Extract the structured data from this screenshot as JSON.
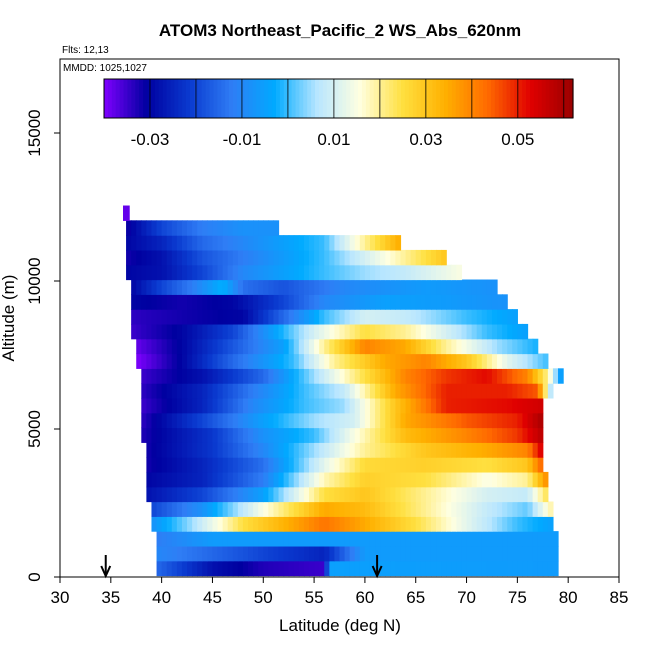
{
  "chart_data": {
    "type": "heatmap",
    "title": "ATOM3 Northeast_Pacific_2 WS_Abs_620nm",
    "flights_label": "Flts: 12,13",
    "dates_label": "MMDD: 1025,1027",
    "xlabel": "Latitude (deg N)",
    "ylabel": "Altitude (m)",
    "xlim": [
      30,
      85
    ],
    "ylim": [
      0,
      17500
    ],
    "x_ticks": [
      "30",
      "35",
      "40",
      "45",
      "50",
      "55",
      "60",
      "65",
      "70",
      "75",
      "80",
      "85"
    ],
    "y_ticks": [
      "0",
      "5000",
      "10000",
      "15000"
    ],
    "colorbar": {
      "range": [
        -0.04,
        0.062
      ],
      "tick_labels": [
        "-0.03",
        "-0.01",
        "0.01",
        "0.03",
        "0.05"
      ],
      "tick_values": [
        -0.03,
        -0.01,
        0.01,
        0.03,
        0.05
      ],
      "colors": [
        "#7f00ff",
        "#0000a0",
        "#0a3acf",
        "#2f7df5",
        "#00aaff",
        "#b8e6ff",
        "#ffffe0",
        "#ffe040",
        "#ffb000",
        "#ff6a00",
        "#e00000",
        "#9a0000"
      ]
    },
    "markers": [
      {
        "label": "arrow",
        "latitude": 34.5
      },
      {
        "label": "arrow",
        "latitude": 61.2
      }
    ],
    "layers": [
      {
        "alt": 300,
        "lat_start": 39.5,
        "lat_end": 79,
        "values": [
          [
            39.5,
            -0.015
          ],
          [
            45,
            -0.028
          ],
          [
            50,
            -0.033
          ],
          [
            56,
            -0.035
          ],
          [
            56.5,
            -0.005
          ],
          [
            79,
            -0.006
          ]
        ]
      },
      {
        "alt": 800,
        "lat_start": 39.5,
        "lat_end": 79,
        "values": [
          [
            39.5,
            -0.01
          ],
          [
            50,
            -0.02
          ],
          [
            56,
            -0.025
          ],
          [
            60,
            -0.006
          ],
          [
            79,
            -0.006
          ]
        ]
      },
      {
        "alt": 1300,
        "lat_start": 39.5,
        "lat_end": 79,
        "values": [
          [
            39.5,
            -0.012
          ],
          [
            45,
            -0.006
          ],
          [
            55,
            -0.006
          ],
          [
            65,
            -0.006
          ],
          [
            79,
            -0.006
          ]
        ]
      },
      {
        "alt": 1800,
        "lat_start": 39,
        "lat_end": 78.5,
        "values": [
          [
            39,
            -0.008
          ],
          [
            43,
            0.005
          ],
          [
            48,
            0.025
          ],
          [
            56,
            0.042
          ],
          [
            60,
            0.035
          ],
          [
            65,
            0.025
          ],
          [
            70,
            0.012
          ],
          [
            75,
            0.0
          ],
          [
            78.5,
            -0.005
          ]
        ]
      },
      {
        "alt": 2300,
        "lat_start": 39,
        "lat_end": 78.5,
        "values": [
          [
            39,
            -0.02
          ],
          [
            44,
            -0.008
          ],
          [
            50,
            0.015
          ],
          [
            56,
            0.035
          ],
          [
            60,
            0.032
          ],
          [
            66,
            0.02
          ],
          [
            72,
            0.008
          ],
          [
            76,
            0.002
          ],
          [
            78.5,
            0.02
          ]
        ]
      },
      {
        "alt": 2800,
        "lat_start": 38.5,
        "lat_end": 78,
        "values": [
          [
            38.5,
            -0.028
          ],
          [
            44,
            -0.02
          ],
          [
            50,
            -0.005
          ],
          [
            56,
            0.025
          ],
          [
            60,
            0.03
          ],
          [
            66,
            0.02
          ],
          [
            72,
            0.01
          ],
          [
            76,
            0.008
          ],
          [
            78,
            0.025
          ]
        ]
      },
      {
        "alt": 3300,
        "lat_start": 38.5,
        "lat_end": 78,
        "values": [
          [
            38.5,
            -0.03
          ],
          [
            44,
            -0.025
          ],
          [
            50,
            -0.012
          ],
          [
            56,
            0.018
          ],
          [
            60,
            0.028
          ],
          [
            66,
            0.025
          ],
          [
            72,
            0.015
          ],
          [
            76,
            0.02
          ],
          [
            78,
            0.04
          ]
        ]
      },
      {
        "alt": 3800,
        "lat_start": 38.5,
        "lat_end": 77.5,
        "values": [
          [
            38.5,
            -0.032
          ],
          [
            44,
            -0.025
          ],
          [
            50,
            -0.014
          ],
          [
            56,
            0.012
          ],
          [
            60,
            0.026
          ],
          [
            66,
            0.028
          ],
          [
            72,
            0.025
          ],
          [
            76,
            0.03
          ],
          [
            77.5,
            0.045
          ]
        ]
      },
      {
        "alt": 4300,
        "lat_start": 38.5,
        "lat_end": 77.5,
        "values": [
          [
            38.5,
            -0.032
          ],
          [
            45,
            -0.022
          ],
          [
            50,
            -0.01
          ],
          [
            56,
            0.008
          ],
          [
            60,
            0.02
          ],
          [
            66,
            0.03
          ],
          [
            72,
            0.035
          ],
          [
            76,
            0.04
          ],
          [
            77.5,
            0.055
          ]
        ]
      },
      {
        "alt": 4800,
        "lat_start": 38,
        "lat_end": 77.5,
        "values": [
          [
            38,
            -0.033
          ],
          [
            45,
            -0.022
          ],
          [
            50,
            -0.008
          ],
          [
            55,
            0.0
          ],
          [
            59,
            0.015
          ],
          [
            64,
            0.032
          ],
          [
            70,
            0.04
          ],
          [
            75,
            0.048
          ],
          [
            77.5,
            0.058
          ]
        ]
      },
      {
        "alt": 5300,
        "lat_start": 38,
        "lat_end": 77.5,
        "values": [
          [
            38,
            -0.034
          ],
          [
            44,
            -0.02
          ],
          [
            50,
            -0.005
          ],
          [
            55,
            0.005
          ],
          [
            59,
            0.01
          ],
          [
            64,
            0.035
          ],
          [
            70,
            0.045
          ],
          [
            75,
            0.05
          ],
          [
            77.5,
            0.06
          ]
        ]
      },
      {
        "alt": 5800,
        "lat_start": 38,
        "lat_end": 77.5,
        "values": [
          [
            38,
            -0.035
          ],
          [
            44,
            -0.025
          ],
          [
            49,
            -0.01
          ],
          [
            54,
            0.0
          ],
          [
            58,
            0.005
          ],
          [
            63,
            0.03
          ],
          [
            68,
            0.05
          ],
          [
            74,
            0.052
          ],
          [
            77.5,
            0.055
          ]
        ]
      },
      {
        "alt": 6300,
        "lat_start": 38,
        "lat_end": 78.5,
        "values": [
          [
            38,
            -0.034
          ],
          [
            44,
            -0.025
          ],
          [
            49,
            -0.012
          ],
          [
            54,
            0.0
          ],
          [
            58,
            0.008
          ],
          [
            63,
            0.035
          ],
          [
            68,
            0.05
          ],
          [
            74,
            0.05
          ],
          [
            77,
            0.045
          ],
          [
            78.5,
            0.0
          ]
        ]
      },
      {
        "alt": 6800,
        "lat_start": 38,
        "lat_end": 79.5,
        "values": [
          [
            38,
            -0.035
          ],
          [
            44,
            -0.028
          ],
          [
            50,
            -0.015
          ],
          [
            55,
            0.005
          ],
          [
            60,
            0.025
          ],
          [
            64,
            0.04
          ],
          [
            68,
            0.048
          ],
          [
            72,
            0.052
          ],
          [
            76,
            0.04
          ],
          [
            78,
            0.02
          ],
          [
            79.5,
            -0.01
          ]
        ]
      },
      {
        "alt": 7300,
        "lat_start": 37.5,
        "lat_end": 78,
        "values": [
          [
            37.5,
            -0.04
          ],
          [
            42,
            -0.03
          ],
          [
            47,
            -0.015
          ],
          [
            53,
            0.0
          ],
          [
            57,
            0.02
          ],
          [
            62,
            0.035
          ],
          [
            66,
            0.04
          ],
          [
            70,
            0.03
          ],
          [
            74,
            0.012
          ],
          [
            78,
            0.0
          ]
        ]
      },
      {
        "alt": 7800,
        "lat_start": 37.5,
        "lat_end": 77,
        "values": [
          [
            37.5,
            -0.038
          ],
          [
            42,
            -0.03
          ],
          [
            46,
            -0.02
          ],
          [
            52,
            -0.005
          ],
          [
            56,
            0.02
          ],
          [
            60,
            0.04
          ],
          [
            64,
            0.035
          ],
          [
            68,
            0.02
          ],
          [
            73,
            0.005
          ],
          [
            77,
            -0.002
          ]
        ]
      },
      {
        "alt": 8300,
        "lat_start": 37,
        "lat_end": 76,
        "values": [
          [
            37,
            -0.035
          ],
          [
            42,
            -0.03
          ],
          [
            47,
            -0.02
          ],
          [
            51,
            -0.005
          ],
          [
            55,
            0.01
          ],
          [
            60,
            0.025
          ],
          [
            64,
            0.02
          ],
          [
            68,
            0.01
          ],
          [
            72,
            0.0
          ],
          [
            76,
            -0.005
          ]
        ]
      },
      {
        "alt": 8800,
        "lat_start": 37,
        "lat_end": 75,
        "values": [
          [
            37,
            -0.034
          ],
          [
            42,
            -0.032
          ],
          [
            48,
            -0.03
          ],
          [
            52,
            -0.015
          ],
          [
            56,
            0.0
          ],
          [
            60,
            0.01
          ],
          [
            64,
            0.008
          ],
          [
            70,
            0.0
          ],
          [
            75,
            -0.005
          ]
        ]
      },
      {
        "alt": 9300,
        "lat_start": 37,
        "lat_end": 74,
        "values": [
          [
            37,
            -0.03
          ],
          [
            42,
            -0.032
          ],
          [
            47,
            -0.03
          ],
          [
            52,
            -0.02
          ],
          [
            56,
            -0.01
          ],
          [
            62,
            -0.005
          ],
          [
            68,
            -0.006
          ],
          [
            74,
            -0.008
          ]
        ]
      },
      {
        "alt": 9800,
        "lat_start": 37,
        "lat_end": 73,
        "values": [
          [
            37,
            -0.03
          ],
          [
            40,
            -0.02
          ],
          [
            43,
            -0.012
          ],
          [
            46,
            -0.002
          ],
          [
            48,
            -0.014
          ],
          [
            52,
            -0.018
          ],
          [
            58,
            -0.01
          ],
          [
            66,
            -0.006
          ],
          [
            73,
            -0.008
          ]
        ]
      },
      {
        "alt": 10300,
        "lat_start": 36.5,
        "lat_end": 69.5,
        "values": [
          [
            36.5,
            -0.03
          ],
          [
            40,
            -0.028
          ],
          [
            44,
            -0.02
          ],
          [
            48,
            -0.01
          ],
          [
            52,
            -0.005
          ],
          [
            56,
            0.0
          ],
          [
            60,
            0.005
          ],
          [
            64,
            0.008
          ],
          [
            69.5,
            0.015
          ]
        ]
      },
      {
        "alt": 10800,
        "lat_start": 36.5,
        "lat_end": 68,
        "values": [
          [
            36.5,
            -0.032
          ],
          [
            40,
            -0.028
          ],
          [
            44,
            -0.018
          ],
          [
            48,
            -0.012
          ],
          [
            52,
            -0.006
          ],
          [
            56,
            0.0
          ],
          [
            60,
            0.01
          ],
          [
            64,
            0.02
          ],
          [
            68,
            0.03
          ]
        ]
      },
      {
        "alt": 11300,
        "lat_start": 36.5,
        "lat_end": 63.5,
        "values": [
          [
            36.5,
            -0.03
          ],
          [
            40,
            -0.025
          ],
          [
            44,
            -0.015
          ],
          [
            48,
            -0.01
          ],
          [
            52,
            -0.005
          ],
          [
            56,
            0.0
          ],
          [
            60,
            0.02
          ],
          [
            63.5,
            0.035
          ]
        ]
      },
      {
        "alt": 11800,
        "lat_start": 36.5,
        "lat_end": 51.5,
        "values": [
          [
            36.5,
            -0.032
          ],
          [
            40,
            -0.02
          ],
          [
            44,
            -0.012
          ],
          [
            48,
            -0.008
          ],
          [
            51.5,
            -0.008
          ]
        ]
      },
      {
        "alt": 12300,
        "lat_start": 36.2,
        "lat_end": 36.8,
        "values": [
          [
            36.2,
            -0.038
          ],
          [
            36.8,
            -0.038
          ]
        ]
      }
    ]
  }
}
